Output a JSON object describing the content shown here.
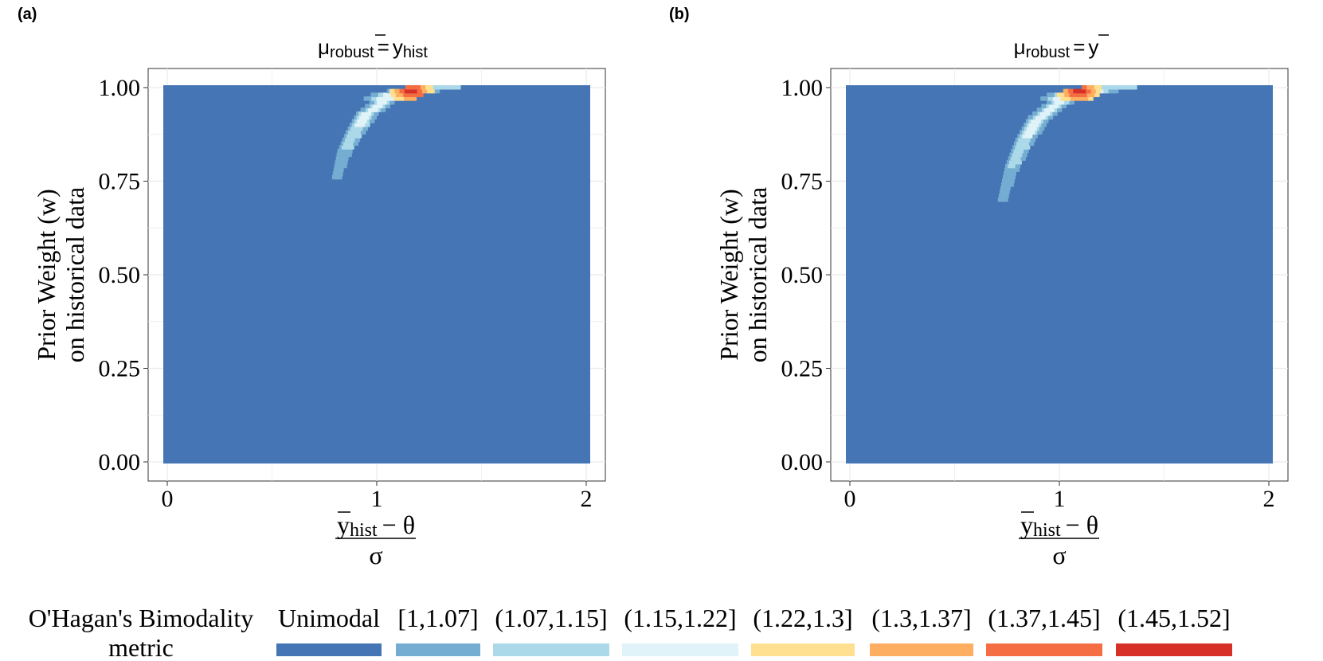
{
  "panel_labels": [
    "(a)",
    "(b)"
  ],
  "axis_labels": {
    "x_numerator": "y",
    "x_numerator_sub": "hist",
    "x_numerator_rest": "− θ",
    "x_denominator": "σ",
    "y_line1": "Prior Weight (w)",
    "y_line2": "on historical data"
  },
  "titles": [
    {
      "mu": "μ",
      "mu_sub": "robust",
      "eq": "=",
      "rhs": "y",
      "rhs_sub": "hist"
    },
    {
      "mu": "μ",
      "mu_sub": "robust",
      "eq": "=",
      "rhs": "y",
      "rhs_sub": ""
    }
  ],
  "legend": {
    "title_line1": "O'Hagan's Bimodality",
    "title_line2": "metric",
    "items": [
      {
        "label": "Unimodal",
        "color": "#4575b4"
      },
      {
        "label": "[1,1.07]",
        "color": "#74add1"
      },
      {
        "label": "(1.07,1.15]",
        "color": "#abd9e9"
      },
      {
        "label": "(1.15,1.22]",
        "color": "#e0f3f8"
      },
      {
        "label": "(1.22,1.3]",
        "color": "#fee090"
      },
      {
        "label": "(1.3,1.37]",
        "color": "#fdae61"
      },
      {
        "label": "(1.37,1.45]",
        "color": "#f46d43"
      },
      {
        "label": "(1.45,1.52]",
        "color": "#d73027"
      }
    ]
  },
  "chart_data": [
    {
      "type": "heatmap",
      "panel": "(a)",
      "title": "μ_robust = ȳ_hist",
      "xlabel": "(ȳ_hist − θ) / σ",
      "ylabel": "Prior Weight (w) on historical data",
      "xlim": [
        0,
        2
      ],
      "ylim": [
        0,
        1
      ],
      "xticks": [
        "0",
        "1",
        "2"
      ],
      "yticks": [
        "0.00",
        "0.25",
        "0.50",
        "0.75",
        "1.00"
      ],
      "background_category": "Unimodal",
      "bimodal_region": {
        "description": "curved band of bimodal cells near w = 1",
        "boundary": [
          [
            0.81,
            0.76
          ],
          [
            0.85,
            0.83
          ],
          [
            0.9,
            0.88
          ],
          [
            0.96,
            0.93
          ],
          [
            1.03,
            0.96
          ],
          [
            1.1,
            0.98
          ],
          [
            1.18,
            0.99
          ],
          [
            1.27,
            1.0
          ]
        ],
        "band_w_width": 0.03,
        "peak": {
          "x": 1.17,
          "w": 0.99,
          "category": "(1.45,1.52]"
        }
      }
    },
    {
      "type": "heatmap",
      "panel": "(b)",
      "title": "μ_robust = ȳ",
      "xlabel": "(ȳ_hist − θ) / σ",
      "ylabel": "Prior Weight (w) on historical data",
      "xlim": [
        0,
        2
      ],
      "ylim": [
        0,
        1
      ],
      "xticks": [
        "0",
        "1",
        "2"
      ],
      "yticks": [
        "0.00",
        "0.25",
        "0.50",
        "0.75",
        "1.00"
      ],
      "background_category": "Unimodal",
      "bimodal_region": {
        "description": "curved band of bimodal cells near w = 1",
        "boundary": [
          [
            0.73,
            0.7
          ],
          [
            0.78,
            0.79
          ],
          [
            0.84,
            0.86
          ],
          [
            0.91,
            0.92
          ],
          [
            0.99,
            0.955
          ],
          [
            1.07,
            0.98
          ],
          [
            1.15,
            0.99
          ],
          [
            1.24,
            1.0
          ]
        ],
        "band_w_width": 0.035,
        "peak": {
          "x": 1.1,
          "w": 0.99,
          "category": "(1.45,1.52]"
        }
      }
    }
  ]
}
